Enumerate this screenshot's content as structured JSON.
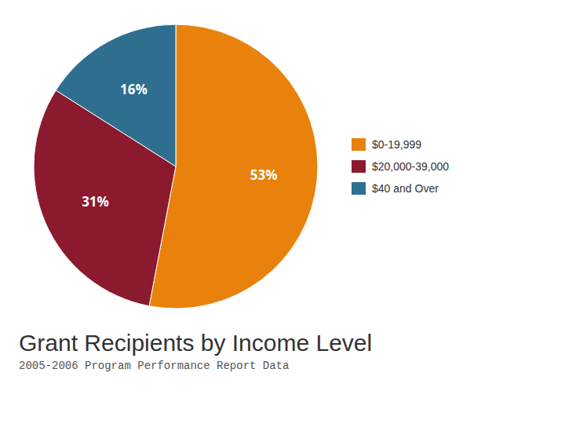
{
  "chart_data": {
    "type": "pie",
    "title": "Grant Recipients by Income Level",
    "subtitle": "2005-2006 Program Performance Report Data",
    "categories": [
      "$0-19,999",
      "$20,000-39,000",
      "$40 and Over"
    ],
    "values": [
      53,
      31,
      16
    ],
    "value_labels": [
      "53%",
      "31%",
      "16%"
    ],
    "colors": [
      "#E8820C",
      "#8B1A2E",
      "#2E6E8E"
    ],
    "data_labels": true,
    "legend": "right"
  }
}
